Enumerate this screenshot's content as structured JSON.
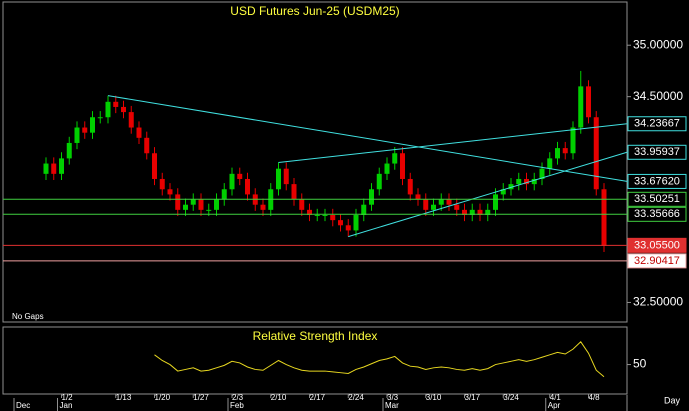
{
  "chart_data": [
    {
      "type": "candlestick",
      "title": "USD  Futures  Jun-25  (USDM25)",
      "note": "No Gaps",
      "x_label": "Day",
      "categories": [
        null,
        null,
        "1/2",
        null,
        null,
        null,
        null,
        null,
        null,
        "1/13",
        null,
        null,
        null,
        null,
        "1/20",
        null,
        null,
        null,
        null,
        "1/27",
        null,
        null,
        null,
        null,
        "2/3",
        null,
        null,
        null,
        null,
        "2/10",
        null,
        null,
        null,
        null,
        "2/17",
        null,
        null,
        null,
        null,
        "2/24",
        null,
        null,
        null,
        null,
        "3/3",
        null,
        null,
        null,
        null,
        "3/10",
        null,
        null,
        null,
        null,
        "3/17",
        null,
        null,
        null,
        null,
        "3/24",
        null,
        null,
        null,
        null,
        null,
        "4/1",
        null,
        null,
        null,
        null,
        "4/8",
        null,
        null
      ],
      "months": [
        "Dec",
        null,
        "Jan",
        null,
        null,
        null,
        null,
        null,
        null,
        null,
        null,
        null,
        null,
        null,
        null,
        null,
        null,
        null,
        null,
        null,
        null,
        null,
        null,
        null,
        "Feb",
        null,
        null,
        null,
        null,
        null,
        null,
        null,
        null,
        null,
        null,
        null,
        null,
        null,
        null,
        null,
        null,
        null,
        null,
        null,
        "Mar",
        null,
        null,
        null,
        null,
        null,
        null,
        null,
        null,
        null,
        null,
        null,
        null,
        null,
        null,
        null,
        null,
        null,
        null,
        null,
        null,
        "Apr",
        null,
        null,
        null,
        null,
        null,
        null,
        null
      ],
      "open": [
        33.75,
        33.85,
        33.75,
        33.9,
        34.05,
        34.2,
        34.15,
        34.3,
        34.3,
        34.45,
        34.4,
        34.35,
        34.2,
        34.1,
        33.95,
        33.7,
        33.6,
        33.55,
        33.4,
        33.45,
        33.5,
        33.4,
        33.4,
        33.5,
        33.6,
        33.75,
        33.7,
        33.55,
        33.45,
        33.4,
        33.6,
        33.8,
        33.65,
        33.5,
        33.4,
        33.35,
        33.35,
        33.35,
        33.3,
        33.25,
        33.2,
        33.35,
        33.45,
        33.6,
        33.75,
        33.85,
        33.95,
        33.7,
        33.55,
        33.5,
        33.4,
        33.45,
        33.5,
        33.45,
        33.4,
        33.35,
        33.4,
        33.35,
        33.4,
        33.55,
        33.6,
        33.65,
        33.7,
        33.65,
        33.7,
        33.8,
        33.9,
        34.0,
        33.95,
        34.2,
        34.6,
        34.3,
        33.6
      ],
      "high": [
        33.91,
        33.91,
        33.96,
        34.11,
        34.26,
        34.26,
        34.36,
        34.36,
        34.51,
        34.51,
        34.46,
        34.41,
        34.26,
        34.16,
        34.01,
        33.76,
        33.66,
        33.61,
        33.51,
        33.56,
        33.56,
        33.46,
        33.56,
        33.66,
        33.81,
        33.81,
        33.76,
        33.61,
        33.51,
        33.66,
        33.86,
        33.86,
        33.71,
        33.56,
        33.46,
        33.41,
        33.41,
        33.41,
        33.36,
        33.31,
        33.41,
        33.51,
        33.66,
        33.81,
        33.91,
        34.01,
        34.01,
        33.76,
        33.61,
        33.56,
        33.51,
        33.56,
        33.56,
        33.51,
        33.46,
        33.46,
        33.46,
        33.46,
        33.61,
        33.66,
        33.71,
        33.76,
        33.76,
        33.76,
        33.86,
        33.96,
        34.06,
        34.06,
        34.26,
        34.75,
        34.66,
        34.36,
        33.66
      ],
      "low": [
        33.69,
        33.69,
        33.69,
        33.84,
        33.99,
        34.09,
        34.09,
        34.24,
        34.24,
        34.34,
        34.29,
        34.14,
        34.04,
        33.89,
        33.64,
        33.54,
        33.49,
        33.34,
        33.34,
        33.39,
        33.34,
        33.34,
        33.34,
        33.44,
        33.54,
        33.64,
        33.49,
        33.39,
        33.34,
        33.34,
        33.54,
        33.59,
        33.44,
        33.34,
        33.29,
        33.29,
        33.29,
        33.24,
        33.19,
        33.14,
        33.14,
        33.29,
        33.39,
        33.54,
        33.69,
        33.79,
        33.64,
        33.49,
        33.44,
        33.34,
        33.34,
        33.39,
        33.39,
        33.34,
        33.29,
        33.29,
        33.29,
        33.29,
        33.34,
        33.49,
        33.54,
        33.59,
        33.59,
        33.59,
        33.64,
        33.74,
        33.84,
        33.89,
        33.89,
        34.14,
        34.24,
        33.54,
        32.99
      ],
      "close": [
        33.85,
        33.75,
        33.9,
        34.05,
        34.2,
        34.15,
        34.3,
        34.3,
        34.45,
        34.4,
        34.35,
        34.2,
        34.1,
        33.95,
        33.7,
        33.6,
        33.55,
        33.4,
        33.45,
        33.5,
        33.4,
        33.4,
        33.5,
        33.6,
        33.75,
        33.7,
        33.55,
        33.45,
        33.4,
        33.6,
        33.8,
        33.65,
        33.5,
        33.4,
        33.35,
        33.35,
        33.35,
        33.3,
        33.25,
        33.2,
        33.35,
        33.45,
        33.6,
        33.75,
        33.85,
        33.95,
        33.7,
        33.55,
        33.5,
        33.4,
        33.45,
        33.5,
        33.45,
        33.4,
        33.35,
        33.4,
        33.35,
        33.4,
        33.55,
        33.6,
        33.65,
        33.7,
        33.65,
        33.7,
        33.8,
        33.9,
        34.0,
        33.95,
        34.2,
        34.6,
        34.3,
        33.6,
        33.05
      ],
      "up_color": "#00d000",
      "down_color": "#e80000",
      "ylim": [
        32.31,
        35.42
      ],
      "yticks": [
        {
          "value": 35,
          "label": "35.00000"
        },
        {
          "value": 34.5,
          "label": "34.50000"
        },
        {
          "value": 32.5,
          "label": "32.50000"
        }
      ],
      "levels": [
        34.23667,
        33.95937,
        {
          "value": 33.6762,
          "label": "33.67620"
        },
        33.50251,
        33.35666,
        {
          "value": 33.055,
          "label": "33.05500"
        },
        32.90417
      ],
      "level_kinds": [
        "trend",
        "trend",
        "trend",
        "line",
        "line",
        "line",
        "line"
      ],
      "level_colors": [
        "#40e0e0",
        "#40e0e0",
        "#40e0e0",
        "#40d040",
        "#40d040",
        "#e03030",
        "#f0a0a0"
      ]
    },
    {
      "type": "line",
      "title": "Relative  Strength  Index",
      "color": "#e8d820",
      "values": [
        null,
        null,
        null,
        null,
        null,
        null,
        null,
        null,
        null,
        null,
        null,
        null,
        null,
        null,
        62,
        55,
        50,
        42,
        44,
        46,
        42,
        43,
        46,
        49,
        54,
        52,
        47,
        44,
        43,
        49,
        55,
        50,
        46,
        43,
        42,
        42,
        42,
        41,
        40,
        39,
        44,
        47,
        51,
        55,
        57,
        60,
        52,
        48,
        47,
        44,
        46,
        47,
        46,
        44,
        43,
        45,
        43,
        45,
        50,
        52,
        54,
        56,
        54,
        56,
        59,
        62,
        65,
        63,
        69,
        78,
        64,
        43,
        35
      ],
      "ylim": [
        15,
        95
      ],
      "yticks": [
        50
      ]
    }
  ]
}
